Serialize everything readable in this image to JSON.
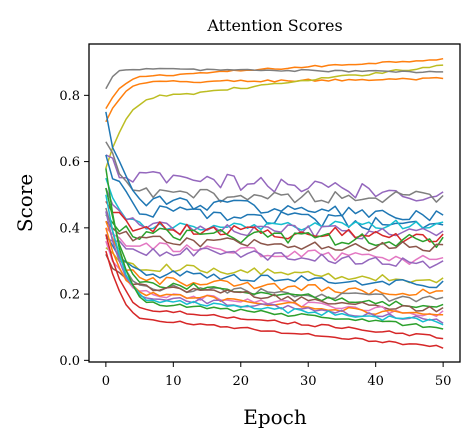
{
  "chart_data": {
    "type": "line",
    "title": "Attention Scores",
    "xlabel": "Epoch",
    "ylabel": "Score",
    "xlim": [
      -2.5,
      52.5
    ],
    "ylim": [
      -0.005,
      0.955
    ],
    "xticks": [
      0,
      10,
      20,
      30,
      40,
      50
    ],
    "xtick_labels": [
      "0",
      "10",
      "20",
      "30",
      "40",
      "50"
    ],
    "yticks": [
      0.0,
      0.2,
      0.4,
      0.6,
      0.8
    ],
    "ytick_labels": [
      "0.0",
      "0.2",
      "0.4",
      "0.6",
      "0.8"
    ],
    "grid": false,
    "legend": "none",
    "epochs": 51,
    "colors": [
      "#1f77b4",
      "#ff7f0e",
      "#2ca02c",
      "#d62728",
      "#9467bd",
      "#8c564b",
      "#e377c2",
      "#7f7f7f",
      "#bcbd22",
      "#17becf"
    ],
    "series": [
      {
        "color": "#ff7f0e",
        "start": 0.76,
        "mid": 0.86,
        "mid_epoch": 8,
        "end": 0.91,
        "noise": 0.003
      },
      {
        "color": "#ff7f0e",
        "start": 0.72,
        "mid": 0.84,
        "mid_epoch": 8,
        "end": 0.85,
        "noise": 0.004
      },
      {
        "color": "#bcbd22",
        "start": 0.58,
        "mid": 0.8,
        "mid_epoch": 10,
        "end": 0.89,
        "noise": 0.004
      },
      {
        "color": "#7f7f7f",
        "start": 0.82,
        "mid": 0.88,
        "mid_epoch": 4,
        "end": 0.87,
        "noise": 0.003
      },
      {
        "color": "#9467bd",
        "start": 0.62,
        "mid": 0.55,
        "mid_epoch": 6,
        "end": 0.5,
        "noise": 0.025
      },
      {
        "color": "#7f7f7f",
        "start": 0.66,
        "mid": 0.5,
        "mid_epoch": 8,
        "end": 0.49,
        "noise": 0.02
      },
      {
        "color": "#1f77b4",
        "start": 0.75,
        "mid": 0.48,
        "mid_epoch": 8,
        "end": 0.43,
        "noise": 0.02
      },
      {
        "color": "#1f77b4",
        "start": 0.62,
        "mid": 0.45,
        "mid_epoch": 8,
        "end": 0.4,
        "noise": 0.02
      },
      {
        "color": "#17becf",
        "start": 0.55,
        "mid": 0.4,
        "mid_epoch": 8,
        "end": 0.41,
        "noise": 0.015
      },
      {
        "color": "#9467bd",
        "start": 0.52,
        "mid": 0.4,
        "mid_epoch": 8,
        "end": 0.38,
        "noise": 0.02
      },
      {
        "color": "#d62728",
        "start": 0.48,
        "mid": 0.4,
        "mid_epoch": 8,
        "end": 0.37,
        "noise": 0.02
      },
      {
        "color": "#2ca02c",
        "start": 0.44,
        "mid": 0.38,
        "mid_epoch": 8,
        "end": 0.36,
        "noise": 0.02
      },
      {
        "color": "#8c564b",
        "start": 0.42,
        "mid": 0.36,
        "mid_epoch": 8,
        "end": 0.34,
        "noise": 0.015
      },
      {
        "color": "#e377c2",
        "start": 0.4,
        "mid": 0.34,
        "mid_epoch": 8,
        "end": 0.3,
        "noise": 0.015
      },
      {
        "color": "#9467bd",
        "start": 0.37,
        "mid": 0.33,
        "mid_epoch": 8,
        "end": 0.29,
        "noise": 0.015
      },
      {
        "color": "#bcbd22",
        "start": 0.34,
        "mid": 0.28,
        "mid_epoch": 8,
        "end": 0.24,
        "noise": 0.012
      },
      {
        "color": "#1f77b4",
        "start": 0.38,
        "mid": 0.26,
        "mid_epoch": 8,
        "end": 0.23,
        "noise": 0.012
      },
      {
        "color": "#ff7f0e",
        "start": 0.42,
        "mid": 0.24,
        "mid_epoch": 8,
        "end": 0.2,
        "noise": 0.012
      },
      {
        "color": "#7f7f7f",
        "start": 0.46,
        "mid": 0.22,
        "mid_epoch": 8,
        "end": 0.18,
        "noise": 0.012
      },
      {
        "color": "#2ca02c",
        "start": 0.52,
        "mid": 0.23,
        "mid_epoch": 8,
        "end": 0.16,
        "noise": 0.01
      },
      {
        "color": "#8c564b",
        "start": 0.32,
        "mid": 0.22,
        "mid_epoch": 8,
        "end": 0.15,
        "noise": 0.01
      },
      {
        "color": "#e377c2",
        "start": 0.36,
        "mid": 0.2,
        "mid_epoch": 8,
        "end": 0.14,
        "noise": 0.01
      },
      {
        "color": "#ff7f0e",
        "start": 0.4,
        "mid": 0.2,
        "mid_epoch": 8,
        "end": 0.13,
        "noise": 0.008
      },
      {
        "color": "#9467bd",
        "start": 0.45,
        "mid": 0.19,
        "mid_epoch": 8,
        "end": 0.12,
        "noise": 0.008
      },
      {
        "color": "#17becf",
        "start": 0.5,
        "mid": 0.18,
        "mid_epoch": 8,
        "end": 0.115,
        "noise": 0.008
      },
      {
        "color": "#2ca02c",
        "start": 0.58,
        "mid": 0.17,
        "mid_epoch": 8,
        "end": 0.1,
        "noise": 0.006
      },
      {
        "color": "#d62728",
        "start": 0.38,
        "mid": 0.15,
        "mid_epoch": 8,
        "end": 0.07,
        "noise": 0.005
      },
      {
        "color": "#d62728",
        "start": 0.33,
        "mid": 0.12,
        "mid_epoch": 8,
        "end": 0.04,
        "noise": 0.004
      }
    ]
  }
}
